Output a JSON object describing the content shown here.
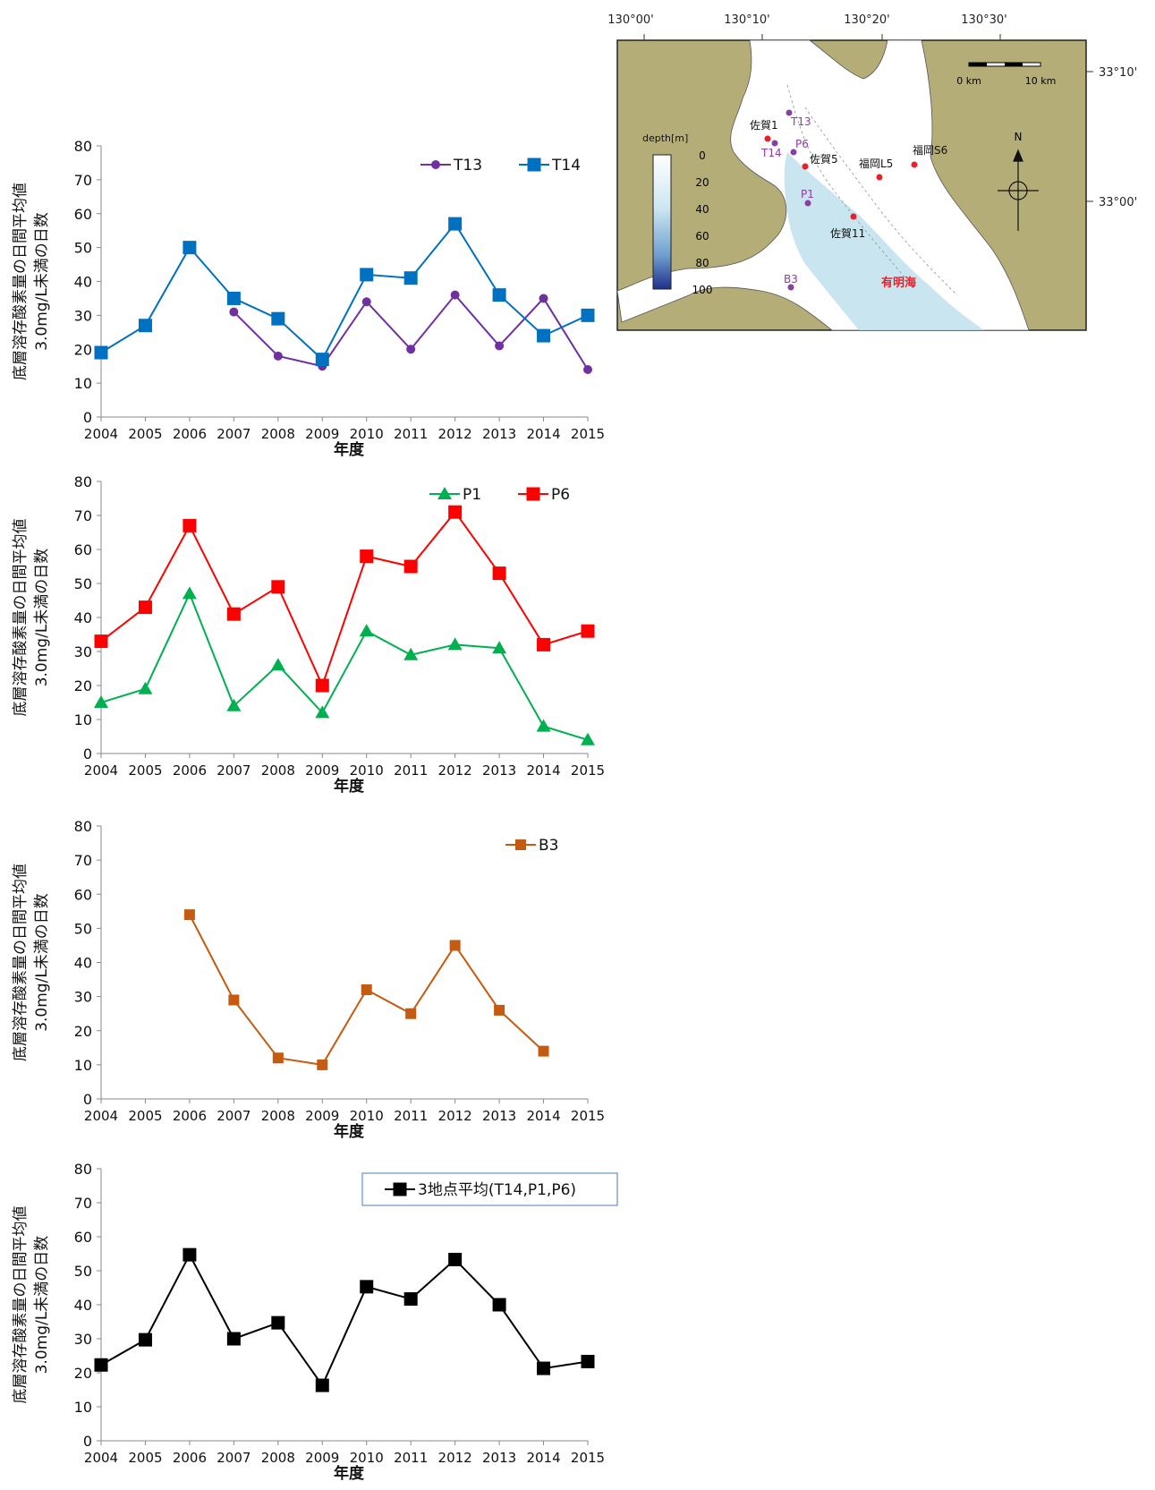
{
  "chart_data": [
    {
      "type": "line",
      "categories": [
        "2004",
        "2005",
        "2006",
        "2007",
        "2008",
        "2009",
        "2010",
        "2011",
        "2012",
        "2013",
        "2014",
        "2015"
      ],
      "ylim": [
        0,
        80
      ],
      "yticks": [
        "0",
        "10",
        "20",
        "30",
        "40",
        "50",
        "60",
        "70",
        "80"
      ],
      "xlabel": "年度",
      "ylabel_lines": [
        "底層溶存酸素量の日間平均値",
        "3.0mg/L未満の日数"
      ],
      "legend_position": "top-right",
      "legend_box": false,
      "series": [
        {
          "name": "T13",
          "color": "#7030a0",
          "marker": "circle",
          "values": [
            null,
            null,
            null,
            31,
            18,
            15,
            34,
            20,
            36,
            21,
            35,
            14
          ]
        },
        {
          "name": "T14",
          "color": "#0070c0",
          "marker": "square",
          "values": [
            19,
            27,
            50,
            35,
            29,
            17,
            42,
            41,
            57,
            36,
            24,
            30
          ]
        }
      ]
    },
    {
      "type": "line",
      "categories": [
        "2004",
        "2005",
        "2006",
        "2007",
        "2008",
        "2009",
        "2010",
        "2011",
        "2012",
        "2013",
        "2014",
        "2015"
      ],
      "ylim": [
        0,
        80
      ],
      "yticks": [
        "0",
        "10",
        "20",
        "30",
        "40",
        "50",
        "60",
        "70",
        "80"
      ],
      "xlabel": "年度",
      "ylabel_lines": [
        "底層溶存酸素量の日間平均値",
        "3.0mg/L未満の日数"
      ],
      "legend_position": "top-right",
      "legend_box": false,
      "series": [
        {
          "name": "P1",
          "color": "#00b050",
          "marker": "triangle",
          "values": [
            15,
            19,
            47,
            14,
            26,
            12,
            36,
            29,
            32,
            31,
            8,
            4
          ]
        },
        {
          "name": "P6",
          "color": "#ff0000",
          "marker": "square",
          "values": [
            33,
            43,
            67,
            41,
            49,
            20,
            58,
            55,
            71,
            53,
            32,
            36
          ]
        }
      ]
    },
    {
      "type": "line",
      "categories": [
        "2004",
        "2005",
        "2006",
        "2007",
        "2008",
        "2009",
        "2010",
        "2011",
        "2012",
        "2013",
        "2014",
        "2015"
      ],
      "ylim": [
        0,
        80
      ],
      "yticks": [
        "0",
        "10",
        "20",
        "30",
        "40",
        "50",
        "60",
        "70",
        "80"
      ],
      "xlabel": "年度",
      "ylabel_lines": [
        "底層溶存酸素量の日間平均値",
        "3.0mg/L未満の日数"
      ],
      "legend_position": "top-right",
      "legend_box": false,
      "series": [
        {
          "name": "B3",
          "color": "#c55a11",
          "marker": "square-small",
          "values": [
            null,
            null,
            54,
            29,
            12,
            10,
            32,
            25,
            45,
            26,
            14,
            null
          ]
        }
      ]
    },
    {
      "type": "line",
      "categories": [
        "2004",
        "2005",
        "2006",
        "2007",
        "2008",
        "2009",
        "2010",
        "2011",
        "2012",
        "2013",
        "2014",
        "2015"
      ],
      "ylim": [
        0,
        80
      ],
      "yticks": [
        "0",
        "10",
        "20",
        "30",
        "40",
        "50",
        "60",
        "70",
        "80"
      ],
      "xlabel": "年度",
      "ylabel_lines": [
        "底層溶存酸素量の日間平均値",
        "3.0mg/L未満の日数"
      ],
      "legend_position": "top-right",
      "legend_box": true,
      "series": [
        {
          "name": "3地点平均(T14,P1,P6)",
          "color": "#000000",
          "marker": "square",
          "values": [
            22.3,
            29.7,
            54.7,
            30,
            34.7,
            16.3,
            45.3,
            41.7,
            53.3,
            40,
            21.3,
            23.3
          ]
        }
      ]
    }
  ],
  "map": {
    "lon_labels": [
      "130°00'",
      "130°10'",
      "130°20'",
      "130°30'"
    ],
    "lat_labels": [
      "33°10'",
      "33°00'"
    ],
    "depth_legend_title": "depth[m]",
    "depth_ticks": [
      "0",
      "20",
      "40",
      "60",
      "80",
      "100"
    ],
    "scale_start": "0 km",
    "scale_end": "10 km",
    "north": "N",
    "sea_name": "有明海",
    "stations_red": [
      "佐賀1",
      "佐賀5",
      "福岡L5",
      "福岡S6",
      "佐賀11"
    ],
    "stations_purple": [
      "T13",
      "T14",
      "P6",
      "P1",
      "B3"
    ],
    "colors": {
      "land": "#b5ad78",
      "sea": "#ffffff",
      "deep_sea": "#bfe0ec",
      "red_station": "#e8202a",
      "purple_station": "#8a3fa0"
    }
  }
}
